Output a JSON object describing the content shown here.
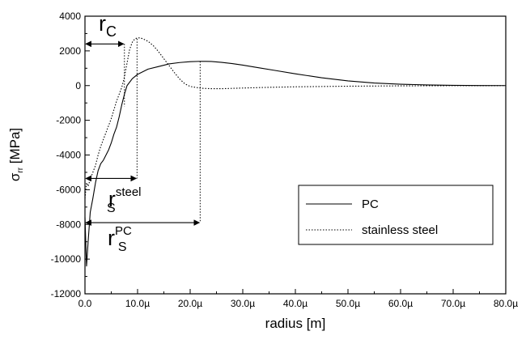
{
  "chart_data": {
    "type": "line",
    "xlabel": "radius [m]",
    "ylabel_main": "σ",
    "ylabel_sub": "rr",
    "ylabel_unit": " [MPa]",
    "xlim": [
      0,
      80
    ],
    "ylim": [
      -12000,
      4000
    ],
    "x_ticks": [
      0,
      10,
      20,
      30,
      40,
      50,
      60,
      70,
      80
    ],
    "x_tick_labels": [
      "0.0",
      "10.0µ",
      "20.0µ",
      "30.0µ",
      "40.0µ",
      "50.0µ",
      "60.0µ",
      "70.0µ",
      "80.0µ"
    ],
    "y_ticks": [
      4000,
      2000,
      0,
      -2000,
      -4000,
      -6000,
      -8000,
      -10000,
      -12000
    ],
    "y_tick_labels": [
      "4000",
      "2000",
      "0",
      "-2000",
      "-4000",
      "-6000",
      "-8000",
      "-10000",
      "-12000"
    ],
    "grid": false,
    "legend_position": "right",
    "series": [
      {
        "name": "PC",
        "style": "solid",
        "x": [
          0,
          0.3,
          0.6,
          1.0,
          1.5,
          2.0,
          2.5,
          3.0,
          3.5,
          4.0,
          4.5,
          5.0,
          5.5,
          6.0,
          6.5,
          7.0,
          7.5,
          8.0,
          9.0,
          10.0,
          11.0,
          12.0,
          14.0,
          16.0,
          18.0,
          20.0,
          22.0,
          24.0,
          26.0,
          28.0,
          30.0,
          33.0,
          36.0,
          40.0,
          45.0,
          50.0,
          55.0,
          60.0,
          65.0,
          70.0,
          75.0,
          80.0
        ],
        "y": [
          -7600,
          -10400,
          -9000,
          -7300,
          -6500,
          -5600,
          -4900,
          -4500,
          -4300,
          -4000,
          -3700,
          -3300,
          -2800,
          -2400,
          -1800,
          -1100,
          -500,
          0,
          400,
          650,
          800,
          950,
          1100,
          1250,
          1330,
          1380,
          1400,
          1390,
          1340,
          1270,
          1180,
          1030,
          880,
          680,
          450,
          270,
          150,
          80,
          40,
          15,
          5,
          0
        ]
      },
      {
        "name": "stainless steel",
        "style": "dotted",
        "x": [
          0,
          0.3,
          0.6,
          1.0,
          1.5,
          2.0,
          2.5,
          3.0,
          3.5,
          4.0,
          4.5,
          5.0,
          5.5,
          6.0,
          6.5,
          7.0,
          7.5,
          8.0,
          8.5,
          9.0,
          9.5,
          10.0,
          10.5,
          11.0,
          12.0,
          13.0,
          14.0,
          15.0,
          16.0,
          17.0,
          18.0,
          19.0,
          20.0,
          22.0,
          24.0,
          26.0,
          28.0,
          30.0,
          35.0,
          40.0,
          50.0,
          60.0,
          70.0,
          80.0
        ],
        "y": [
          -6500,
          -5600,
          -5800,
          -5400,
          -5000,
          -4600,
          -4000,
          -3500,
          -3100,
          -2700,
          -2300,
          -1900,
          -1400,
          -900,
          -500,
          -100,
          500,
          1300,
          2100,
          2500,
          2700,
          2750,
          2750,
          2700,
          2550,
          2300,
          1950,
          1550,
          1150,
          750,
          380,
          100,
          -50,
          -150,
          -180,
          -180,
          -160,
          -140,
          -100,
          -70,
          -35,
          -15,
          -5,
          0
        ]
      }
    ],
    "annotations": [
      {
        "id": "rc",
        "main": "r",
        "sub": "C",
        "sup": "",
        "arrow_x": [
          0,
          7.5
        ],
        "arrow_y": 2400,
        "drop_x": 7.5,
        "drop_y_from": 2400,
        "drop_y_to": -1200
      },
      {
        "id": "rs-steel",
        "main": "r",
        "sub": "S",
        "sup": "steel",
        "arrow_x": [
          0,
          9.9
        ],
        "arrow_y": -5350,
        "drop_x": 9.9,
        "drop_y_from": 2700,
        "drop_y_to": -5350
      },
      {
        "id": "rs-pc",
        "main": "r",
        "sub": "S",
        "sup": "PC",
        "arrow_x": [
          0,
          21.9
        ],
        "arrow_y": -7900,
        "drop_x": 21.9,
        "drop_y_from": 1400,
        "drop_y_to": -7900
      }
    ]
  }
}
